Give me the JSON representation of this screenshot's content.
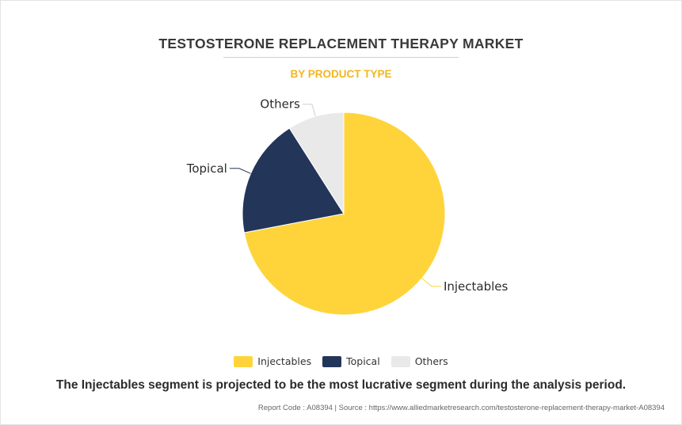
{
  "header": {
    "title": "TESTOSTERONE REPLACEMENT THERAPY MARKET",
    "subtitle": "BY PRODUCT TYPE"
  },
  "chart_data": {
    "type": "pie",
    "categories": [
      "Injectables",
      "Topical",
      "Others"
    ],
    "values": [
      72,
      19,
      9
    ],
    "colors": [
      "#ffd43b",
      "#233559",
      "#e9e9e9"
    ],
    "legend_position": "bottom"
  },
  "legend": {
    "items": [
      {
        "label": "Injectables",
        "color": "#ffd43b"
      },
      {
        "label": "Topical",
        "color": "#233559"
      },
      {
        "label": "Others",
        "color": "#e9e9e9"
      }
    ]
  },
  "footnote": "The Injectables segment is projected to be the most lucrative segment during the analysis period.",
  "source": "Report Code : A08394  |  Source : https://www.alliedmarketresearch.com/testosterone-replacement-therapy-market-A08394"
}
